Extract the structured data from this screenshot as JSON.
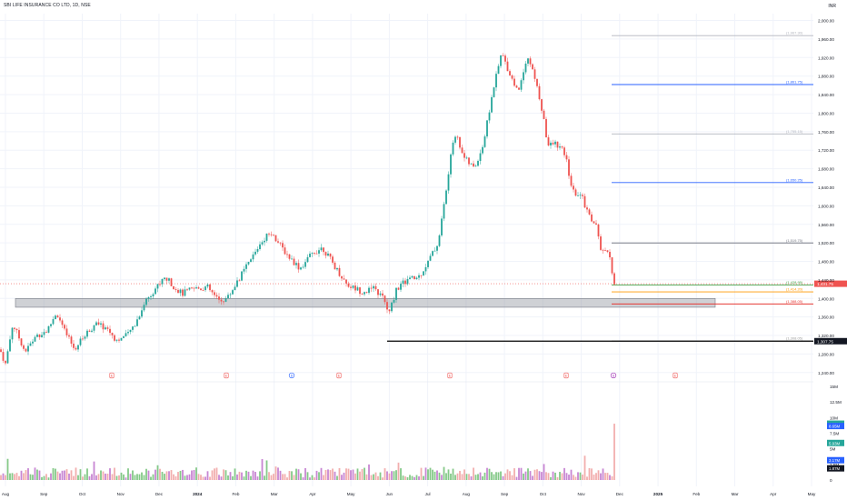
{
  "title": "SBI LIFE INSURANCE CO LTD, 1D, NSE",
  "currency": "INR",
  "colors": {
    "up": "#26a69a",
    "down": "#ef5350",
    "grid": "#f0f3fa",
    "zone": "#9598a1",
    "axis_text": "#131722"
  },
  "chart_data": {
    "type": "candlestick",
    "x_ticks": [
      "Aug",
      "Sep",
      "Oct",
      "Nov",
      "Dec",
      "2024",
      "Feb",
      "Mar",
      "Apr",
      "May",
      "Jun",
      "Jul",
      "Aug",
      "Sep",
      "Oct",
      "Nov",
      "Dec",
      "2025",
      "Feb",
      "Mar",
      "Apr",
      "May"
    ],
    "price_ticks": [
      "2,000.00",
      "1,960.00",
      "1,920.00",
      "1,880.00",
      "1,840.00",
      "1,800.00",
      "1,760.00",
      "1,720.00",
      "1,680.00",
      "1,640.00",
      "1,600.00",
      "1,560.00",
      "1,520.00",
      "1,480.00",
      "1,440.00",
      "1,400.00",
      "1,360.00",
      "1,320.00",
      "1,280.00",
      "1,240.00"
    ],
    "price_range": [
      1220,
      2005
    ],
    "volume_ticks": [
      "15M",
      "12.5M",
      "10M",
      "7.5M",
      "5M",
      "2.5M",
      "0"
    ],
    "volume_range": [
      0,
      15
    ],
    "levels": [
      {
        "label": "1,967.30",
        "value": 1967.3,
        "color": "#b2b5be"
      },
      {
        "label": "1,861.75",
        "value": 1861.75,
        "color": "#2962ff"
      },
      {
        "label": "1,755.15",
        "value": 1755.15,
        "color": "#b2b5be"
      },
      {
        "label": "1,650.25",
        "value": 1650.25,
        "color": "#2962ff"
      },
      {
        "label": "1,519.75",
        "value": 1519.75,
        "color": "#787b86"
      },
      {
        "label": "1,428.95",
        "value": 1428.95,
        "color": "#43a047"
      },
      {
        "label": "1,414.20",
        "value": 1414.2,
        "color": "#ff9800"
      },
      {
        "label": "1,388.05",
        "value": 1388.05,
        "color": "#e53935"
      },
      {
        "label": "1,308.05",
        "value": 1308.05,
        "color": "#9e9e9e"
      }
    ],
    "support_zone": [
      1381,
      1400
    ],
    "last_price": {
      "label": "1,431.75",
      "value": 1431.75
    },
    "low_line": {
      "label": "1,307.75",
      "value": 1307.75
    },
    "volume_labels": [
      {
        "label": "9.02M",
        "value": 9.02,
        "color": "#26a69a"
      },
      {
        "label": "8.65M",
        "value": 8.65,
        "color": "#2962ff"
      },
      {
        "label": "5.93M",
        "value": 5.93,
        "color": "#26a69a"
      },
      {
        "label": "3.17M",
        "value": 3.17,
        "color": "#2962ff"
      },
      {
        "label": "1.87M",
        "value": 1.87,
        "color": "#131722"
      }
    ],
    "event_markers": [
      {
        "label": "E",
        "type": "earnings"
      },
      {
        "label": "E",
        "type": "earnings"
      },
      {
        "label": "D",
        "type": "dividend"
      },
      {
        "label": "E",
        "type": "earnings"
      },
      {
        "label": "E",
        "type": "earnings"
      },
      {
        "label": "E",
        "type": "earnings"
      },
      {
        "label": "S",
        "type": "split"
      },
      {
        "label": "E",
        "type": "earnings"
      }
    ],
    "trend_waypoints": [
      [
        0,
        1290
      ],
      [
        6,
        1258
      ],
      [
        14,
        1345
      ],
      [
        28,
        1285
      ],
      [
        40,
        1320
      ],
      [
        52,
        1330
      ],
      [
        62,
        1370
      ],
      [
        72,
        1325
      ],
      [
        82,
        1290
      ],
      [
        95,
        1325
      ],
      [
        105,
        1345
      ],
      [
        118,
        1335
      ],
      [
        128,
        1310
      ],
      [
        140,
        1320
      ],
      [
        150,
        1350
      ],
      [
        160,
        1395
      ],
      [
        170,
        1420
      ],
      [
        182,
        1445
      ],
      [
        192,
        1425
      ],
      [
        200,
        1410
      ],
      [
        212,
        1420
      ],
      [
        228,
        1425
      ],
      [
        240,
        1395
      ],
      [
        250,
        1400
      ],
      [
        262,
        1440
      ],
      [
        275,
        1480
      ],
      [
        288,
        1525
      ],
      [
        298,
        1545
      ],
      [
        308,
        1515
      ],
      [
        318,
        1490
      ],
      [
        330,
        1465
      ],
      [
        345,
        1500
      ],
      [
        355,
        1510
      ],
      [
        368,
        1470
      ],
      [
        382,
        1430
      ],
      [
        398,
        1415
      ],
      [
        412,
        1420
      ],
      [
        422,
        1400
      ],
      [
        428,
        1365
      ],
      [
        436,
        1420
      ],
      [
        448,
        1440
      ],
      [
        460,
        1445
      ],
      [
        470,
        1475
      ],
      [
        482,
        1520
      ],
      [
        490,
        1620
      ],
      [
        500,
        1760
      ],
      [
        512,
        1700
      ],
      [
        522,
        1680
      ],
      [
        532,
        1735
      ],
      [
        542,
        1845
      ],
      [
        552,
        1930
      ],
      [
        560,
        1890
      ],
      [
        570,
        1845
      ],
      [
        580,
        1925
      ],
      [
        588,
        1880
      ],
      [
        595,
        1820
      ],
      [
        603,
        1730
      ],
      [
        612,
        1735
      ],
      [
        622,
        1710
      ],
      [
        630,
        1630
      ],
      [
        640,
        1620
      ],
      [
        648,
        1580
      ],
      [
        656,
        1555
      ],
      [
        662,
        1500
      ],
      [
        670,
        1495
      ],
      [
        676,
        1432
      ]
    ]
  }
}
